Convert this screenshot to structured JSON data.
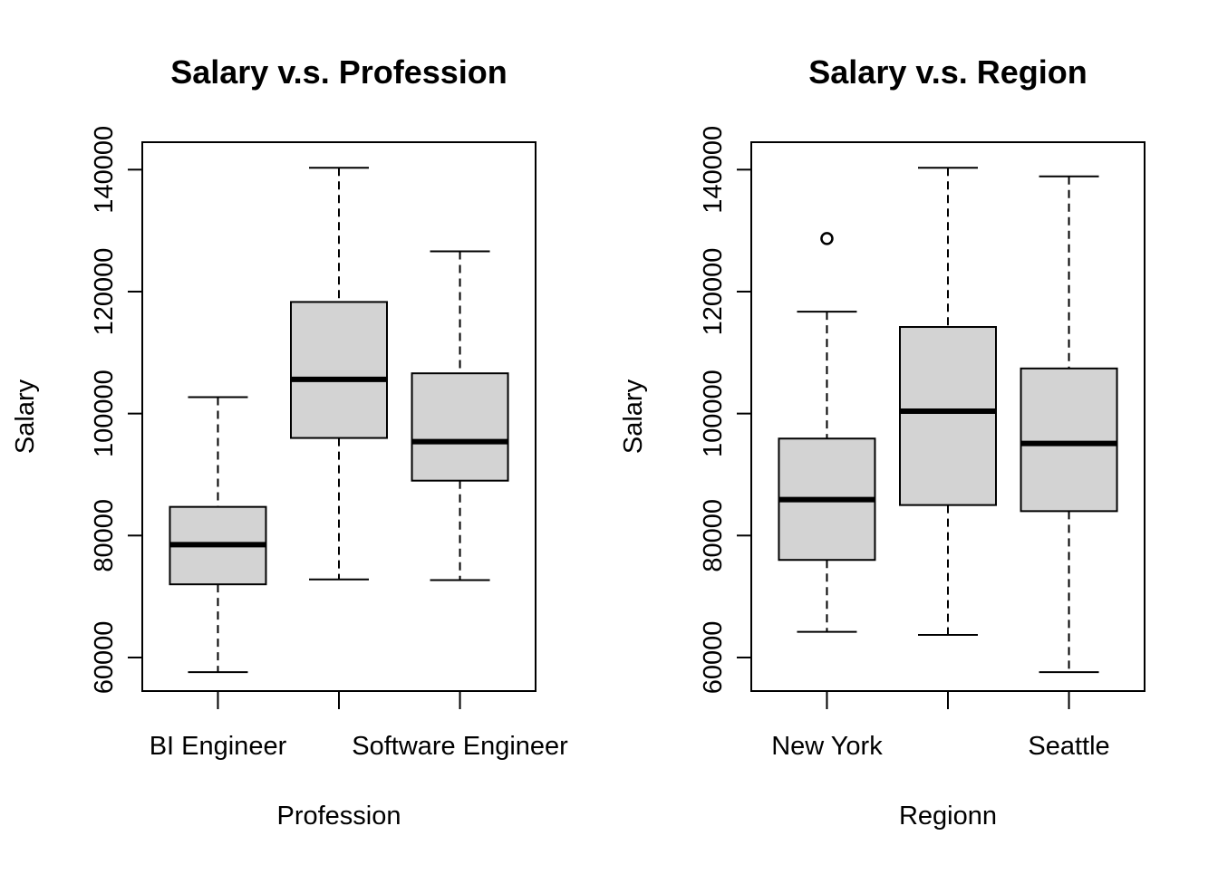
{
  "chart_data": [
    {
      "type": "boxplot",
      "title": "Salary v.s. Profession",
      "xlabel": "Profession",
      "ylabel": "Salary",
      "ylim": [
        54500,
        144500
      ],
      "yticks": [
        60000,
        80000,
        100000,
        120000,
        140000
      ],
      "categories": [
        "BI Engineer",
        "",
        "Software Engineer"
      ],
      "boxes": [
        {
          "category": "BI Engineer",
          "min": 57600,
          "q1": 72000,
          "median": 78500,
          "q3": 84700,
          "max": 102700,
          "outliers": []
        },
        {
          "category": "",
          "min": 72800,
          "q1": 96000,
          "median": 105600,
          "q3": 118300,
          "max": 140300,
          "outliers": []
        },
        {
          "category": "Software Engineer",
          "min": 72700,
          "q1": 89000,
          "median": 95400,
          "q3": 106600,
          "max": 126600,
          "outliers": []
        }
      ],
      "box_color": "#d3d3d3"
    },
    {
      "type": "boxplot",
      "title": "Salary v.s. Region",
      "xlabel": "Regionn",
      "ylabel": "Salary",
      "ylim": [
        54500,
        144500
      ],
      "yticks": [
        60000,
        80000,
        100000,
        120000,
        140000
      ],
      "categories": [
        "New York",
        "",
        "Seattle"
      ],
      "boxes": [
        {
          "category": "New York",
          "min": 64200,
          "q1": 76000,
          "median": 85900,
          "q3": 95900,
          "max": 116700,
          "outliers": [
            128700
          ]
        },
        {
          "category": "",
          "min": 63700,
          "q1": 85000,
          "median": 100400,
          "q3": 114200,
          "max": 140300,
          "outliers": []
        },
        {
          "category": "Seattle",
          "min": 57600,
          "q1": 84000,
          "median": 95100,
          "q3": 107400,
          "max": 138900,
          "outliers": []
        }
      ],
      "box_color": "#d3d3d3"
    }
  ]
}
